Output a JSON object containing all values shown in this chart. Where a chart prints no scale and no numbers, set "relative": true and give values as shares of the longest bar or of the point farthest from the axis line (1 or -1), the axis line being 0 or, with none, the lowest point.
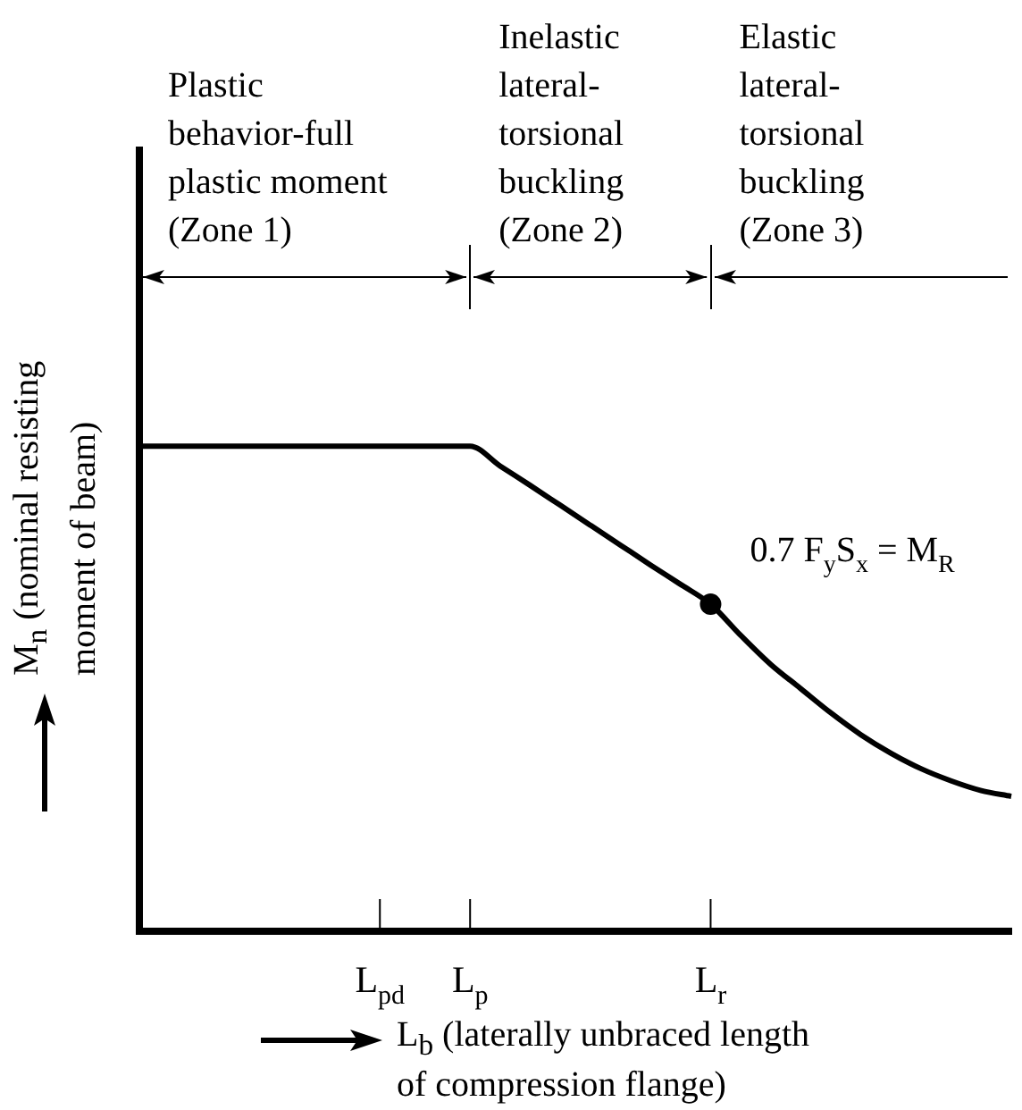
{
  "chart_data": {
    "type": "line",
    "relative": true,
    "xlabel": "L$_{b}$ (laterally unbraced length\nof compression flange)",
    "ylabel": "M$_{n}$ (nominal resisting\nmoment of beam)",
    "categories": [
      null,
      null,
      null,
      null,
      null,
      null,
      null,
      null,
      "L$_{pd}$",
      null,
      null,
      "L$_{p}$",
      null,
      null,
      null,
      null,
      null,
      null,
      null,
      "L$_{r}$",
      null,
      null,
      null,
      null,
      null,
      null,
      null,
      null,
      null,
      null
    ],
    "series": [
      {
        "color": "#000000",
        "values": [
          1,
          1,
          1,
          1,
          1,
          1,
          1,
          1,
          1,
          1,
          1,
          1,
          0.959,
          0.919,
          0.878,
          0.837,
          0.796,
          0.755,
          0.715,
          0.674,
          0.61,
          0.55,
          0.5,
          0.45,
          0.405,
          0.367,
          0.335,
          0.31,
          0.29,
          0.278
        ]
      },
      {
        "type": "scatter",
        "color": "#000000",
        "values": [
          null,
          null,
          null,
          null,
          null,
          null,
          null,
          null,
          null,
          null,
          null,
          null,
          null,
          null,
          null,
          null,
          null,
          null,
          null,
          0.674,
          null,
          null,
          null,
          null,
          null,
          null,
          null,
          null,
          null,
          null
        ]
      }
    ],
    "annotations": [
      "Plastic\nbehavior-full\nplastic moment\n(Zone 1)",
      "Inelastic\nlateral-\ntorsional\nbuckling\n(Zone 2)",
      "Elastic\nlateral-\ntorsional\nbuckling\n(Zone 3)",
      {
        "text": "0.7 F$_{y}$S$_{x}$ = M$_{R}$",
        "x": "L$_{r}$",
        "y": 0.674
      }
    ],
    "grid": false,
    "legend": false,
    "line_style": "solid"
  }
}
